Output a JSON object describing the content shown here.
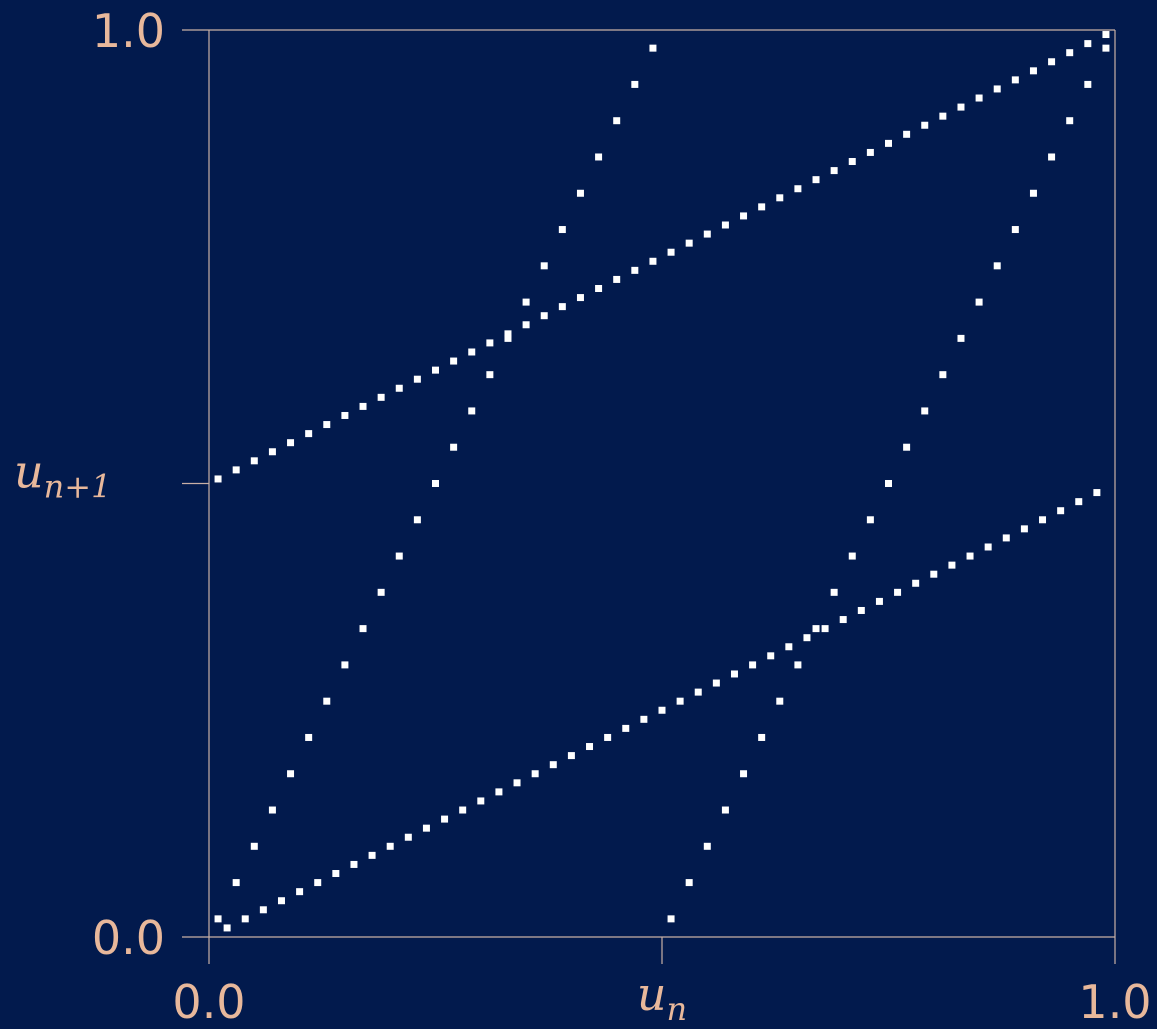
{
  "colors": {
    "background": "#021a4d",
    "axis": "#c9b0a6",
    "text": "#e8b89b",
    "points": "#ffffff"
  },
  "chart_data": {
    "type": "scatter",
    "title": "",
    "xlabel": {
      "base": "u",
      "sub": "n"
    },
    "ylabel": {
      "base": "u",
      "sub": "n+1"
    },
    "xlim": [
      0.0,
      1.0
    ],
    "ylim": [
      0.0,
      1.0
    ],
    "x_tick_labels": [
      "0.0",
      "1.0"
    ],
    "y_tick_labels": [
      "0.0",
      "1.0"
    ],
    "x_ticks": [
      0.0,
      0.5,
      1.0
    ],
    "y_ticks": [
      0.0,
      0.5,
      1.0
    ],
    "grid": false,
    "marker": "square",
    "series": [
      {
        "x": [
          0.01,
          0.03,
          0.05,
          0.07,
          0.09,
          0.11,
          0.13,
          0.15,
          0.17,
          0.19,
          0.21,
          0.23,
          0.25,
          0.27,
          0.29,
          0.31,
          0.33,
          0.35,
          0.37,
          0.39,
          0.41,
          0.43,
          0.45,
          0.47,
          0.49,
          0.51,
          0.53,
          0.55,
          0.57,
          0.59,
          0.61,
          0.63,
          0.65,
          0.67,
          0.69,
          0.71,
          0.73,
          0.75,
          0.77,
          0.79,
          0.81,
          0.83,
          0.85,
          0.87,
          0.89,
          0.91,
          0.93,
          0.95,
          0.97,
          0.99
        ],
        "y": [
          0.02,
          0.06,
          0.1,
          0.14,
          0.18,
          0.22,
          0.26,
          0.3,
          0.34,
          0.38,
          0.42,
          0.46,
          0.5,
          0.54,
          0.58,
          0.62,
          0.66,
          0.7,
          0.74,
          0.78,
          0.82,
          0.86,
          0.9,
          0.94,
          0.98,
          0.02,
          0.06,
          0.1,
          0.14,
          0.18,
          0.22,
          0.26,
          0.3,
          0.34,
          0.38,
          0.42,
          0.46,
          0.5,
          0.54,
          0.58,
          0.62,
          0.66,
          0.7,
          0.74,
          0.78,
          0.82,
          0.86,
          0.9,
          0.94,
          0.98
        ]
      },
      {
        "x": [
          0.01,
          0.03,
          0.05,
          0.07,
          0.09,
          0.11,
          0.13,
          0.15,
          0.17,
          0.19,
          0.21,
          0.23,
          0.25,
          0.27,
          0.29,
          0.31,
          0.33,
          0.35,
          0.37,
          0.39,
          0.41,
          0.43,
          0.45,
          0.47,
          0.49,
          0.51,
          0.53,
          0.55,
          0.57,
          0.59,
          0.61,
          0.63,
          0.65,
          0.67,
          0.69,
          0.71,
          0.73,
          0.75,
          0.77,
          0.79,
          0.81,
          0.83,
          0.85,
          0.87,
          0.89,
          0.91,
          0.93,
          0.95,
          0.97,
          0.99
        ],
        "y": [
          0.505,
          0.515,
          0.525,
          0.535,
          0.545,
          0.555,
          0.565,
          0.575,
          0.585,
          0.595,
          0.605,
          0.615,
          0.625,
          0.635,
          0.645,
          0.655,
          0.665,
          0.675,
          0.685,
          0.695,
          0.705,
          0.715,
          0.725,
          0.735,
          0.745,
          0.755,
          0.765,
          0.775,
          0.785,
          0.795,
          0.805,
          0.815,
          0.825,
          0.835,
          0.845,
          0.855,
          0.865,
          0.875,
          0.885,
          0.895,
          0.905,
          0.915,
          0.925,
          0.935,
          0.945,
          0.955,
          0.965,
          0.975,
          0.985,
          0.995
        ]
      },
      {
        "x": [
          0.02,
          0.04,
          0.06,
          0.08,
          0.1,
          0.12,
          0.14,
          0.16,
          0.18,
          0.2,
          0.22,
          0.24,
          0.26,
          0.28,
          0.3,
          0.32,
          0.34,
          0.36,
          0.38,
          0.4,
          0.42,
          0.44,
          0.46,
          0.48,
          0.5,
          0.52,
          0.54,
          0.56,
          0.58,
          0.6,
          0.62,
          0.64,
          0.66,
          0.68,
          0.7,
          0.72,
          0.74,
          0.76,
          0.78,
          0.8,
          0.82,
          0.84,
          0.86,
          0.88,
          0.9,
          0.92,
          0.94,
          0.96,
          0.98
        ],
        "y": [
          0.01,
          0.02,
          0.03,
          0.04,
          0.05,
          0.06,
          0.07,
          0.08,
          0.09,
          0.1,
          0.11,
          0.12,
          0.13,
          0.14,
          0.15,
          0.16,
          0.17,
          0.18,
          0.19,
          0.2,
          0.21,
          0.22,
          0.23,
          0.24,
          0.25,
          0.26,
          0.27,
          0.28,
          0.29,
          0.3,
          0.31,
          0.32,
          0.33,
          0.34,
          0.35,
          0.36,
          0.37,
          0.38,
          0.39,
          0.4,
          0.41,
          0.42,
          0.43,
          0.44,
          0.45,
          0.46,
          0.47,
          0.48,
          0.49
        ]
      }
    ]
  }
}
